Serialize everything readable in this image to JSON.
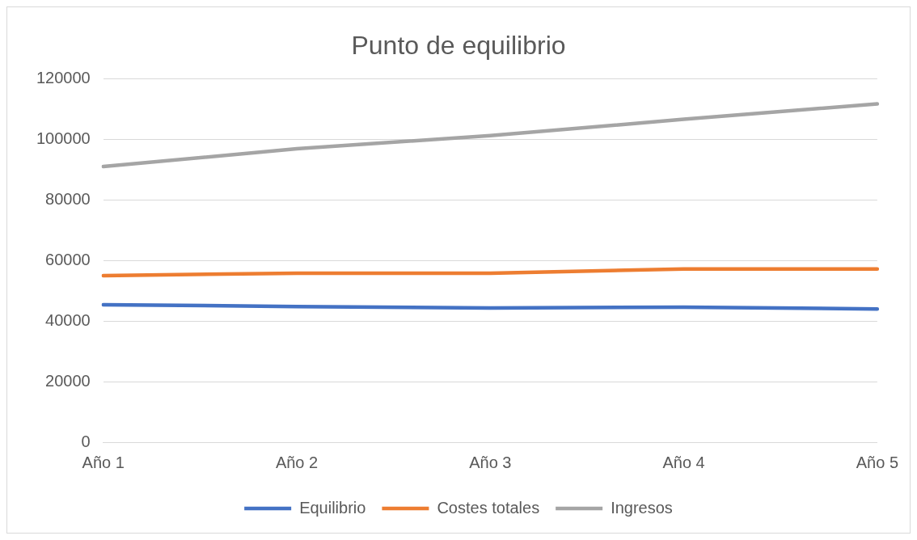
{
  "chart_data": {
    "type": "line",
    "title": "Punto de equilibrio",
    "categories": [
      "Año 1",
      "Año 2",
      "Año 3",
      "Año 4",
      "Año 5"
    ],
    "series": [
      {
        "name": "Equilibrio",
        "color": "#4472c4",
        "values": [
          45400,
          44800,
          44300,
          44600,
          44000
        ]
      },
      {
        "name": "Costes totales",
        "color": "#ed7d31",
        "values": [
          55000,
          55800,
          55800,
          57200,
          57200
        ]
      },
      {
        "name": "Ingresos",
        "color": "#a5a5a5",
        "values": [
          91000,
          96900,
          101200,
          106600,
          111700
        ]
      }
    ],
    "ylim": [
      0,
      120000
    ],
    "yticks": [
      0,
      20000,
      40000,
      60000,
      80000,
      100000,
      120000
    ],
    "grid": "y",
    "legend": "bottom",
    "marker": "none",
    "line_style": "solid"
  }
}
